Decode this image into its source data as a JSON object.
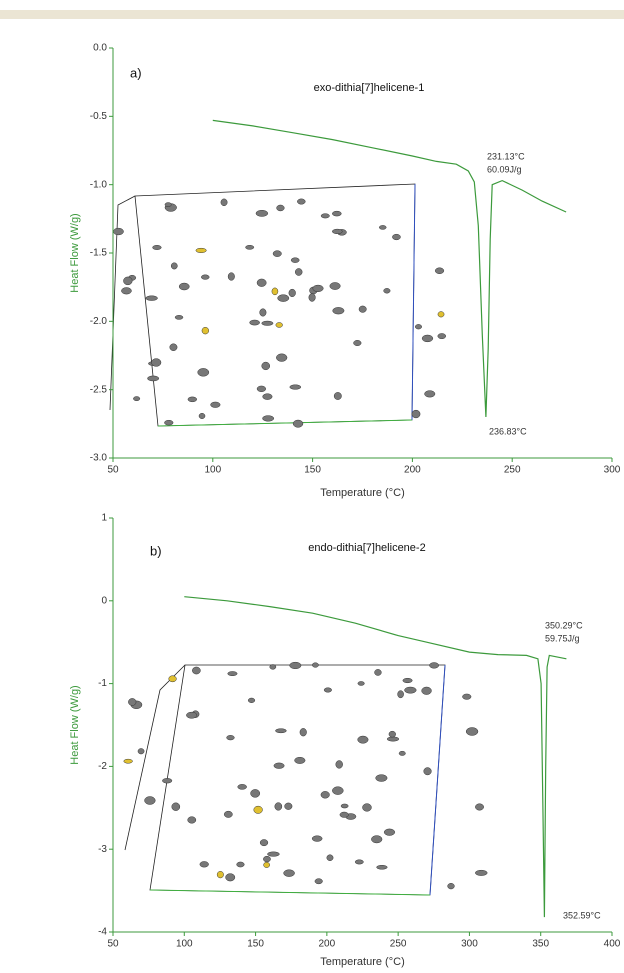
{
  "chart_data": [
    {
      "type": "line",
      "panel_label": "a)",
      "title": "exo-dithia[7]helicene-1",
      "x_label": "Temperature (°C)",
      "y_label": "Heat Flow (W/g)",
      "x": [
        100,
        120,
        140,
        160,
        180,
        200,
        212,
        222,
        228,
        231,
        233,
        235,
        236.83,
        238,
        239,
        240,
        245,
        255,
        265,
        277
      ],
      "values": [
        -0.53,
        -0.57,
        -0.62,
        -0.67,
        -0.73,
        -0.79,
        -0.83,
        -0.85,
        -0.9,
        -0.98,
        -1.3,
        -2.1,
        -2.7,
        -2.2,
        -1.4,
        -1.0,
        -0.97,
        -1.04,
        -1.12,
        -1.2
      ],
      "color": "#3c9a3c",
      "xlim": [
        50,
        300
      ],
      "xticks": [
        50,
        100,
        150,
        200,
        250,
        300
      ],
      "ylim": [
        -3,
        0
      ],
      "yticks": [
        {
          "value": 0,
          "label": "0.0"
        },
        -0.5,
        {
          "value": -1,
          "label": "-1.0"
        },
        -1.5,
        {
          "value": -2,
          "label": "-2.0"
        },
        -2.5,
        {
          "value": -3,
          "label": "-3.0"
        }
      ],
      "annotations": [
        "231.13°C",
        "60.09J/g",
        "236.83°C"
      ]
    },
    {
      "type": "line",
      "panel_label": "b)",
      "title": "endo-dithia[7]helicene-2",
      "x_label": "Temperature (°C)",
      "y_label": "Heat Flow (W/g)",
      "x": [
        100,
        130,
        160,
        190,
        220,
        250,
        270,
        300,
        320,
        340,
        348,
        350.29,
        351.5,
        352.59,
        353.5,
        354.5,
        356,
        368
      ],
      "values": [
        0.05,
        0.0,
        -0.07,
        -0.15,
        -0.27,
        -0.42,
        -0.5,
        -0.62,
        -0.65,
        -0.66,
        -0.7,
        -1.0,
        -2.5,
        -3.82,
        -2.0,
        -0.8,
        -0.66,
        -0.7
      ],
      "color": "#3c9a3c",
      "xlim": [
        50,
        400
      ],
      "xticks": [
        50,
        100,
        150,
        200,
        250,
        300,
        350,
        400
      ],
      "ylim": [
        -4,
        1
      ],
      "yticks": [
        1,
        0,
        -1,
        -2,
        -3,
        -4
      ],
      "annotations": [
        "350.29°C",
        "59.75J/g",
        "352.59°C"
      ]
    }
  ]
}
